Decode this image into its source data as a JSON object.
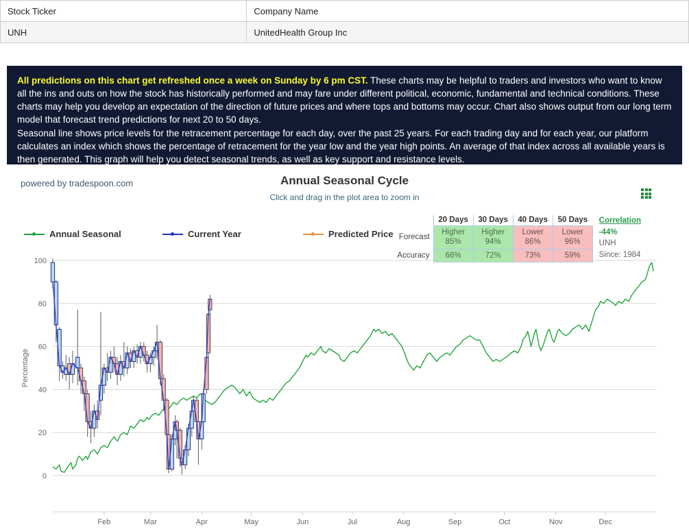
{
  "stock_table": {
    "headers": [
      "Stock Ticker",
      "Company Name"
    ],
    "row": [
      "UNH",
      "UnitedHealth Group Inc"
    ]
  },
  "info_box": {
    "highlight": "All predictions on this chart get refreshed once a week on Sunday by 6 pm CST.",
    "paragraph1_rest": " These charts may be helpful to traders and investors who want to know all the ins and outs on how the stock has historically performed and may fare under different political, economic, fundamental and technical conditions. These charts may help you develop an expectation of the direction of future prices and where tops and bottoms may occur. Chart also shows output from our long term model that forecast trend predictions for next 20 to 50 days.",
    "paragraph2": "Seasonal line shows price levels for the retracement percentage for each day, over the past 25 years. For each trading day and for each year, our platform calculates an index which shows the percentage of retracement for the year low and the year high points. An average of that index across all available years is then generated. This graph will help you detect seasonal trends, as well as key support and resistance levels."
  },
  "chart_header": {
    "powered_by": "powered by tradespoon.com",
    "title": "Annual Seasonal Cycle",
    "subtitle": "Click and drag in the plot area to zoom in"
  },
  "legend": [
    {
      "label": "Annual Seasonal",
      "color": "#21a63c"
    },
    {
      "label": "Current Year",
      "color": "#2431c8"
    },
    {
      "label": "Predicted Price",
      "color": "#ef8d3c"
    }
  ],
  "forecast_table": {
    "columns": [
      "20 Days",
      "30 Days",
      "40 Days",
      "50 Days"
    ],
    "forecast_label": "Forecast",
    "accuracy_label": "Accuracy",
    "forecast": [
      {
        "direction": "Higher",
        "pct": "85%",
        "tone": "up"
      },
      {
        "direction": "Higher",
        "pct": "94%",
        "tone": "up"
      },
      {
        "direction": "Lower",
        "pct": "86%",
        "tone": "down"
      },
      {
        "direction": "Lower",
        "pct": "96%",
        "tone": "down"
      }
    ],
    "accuracy": [
      {
        "pct": "66%",
        "tone": "up"
      },
      {
        "pct": "72%",
        "tone": "up"
      },
      {
        "pct": "73%",
        "tone": "down"
      },
      {
        "pct": "59%",
        "tone": "down"
      }
    ]
  },
  "correlation": {
    "label": "Correlation",
    "value": "-44%",
    "symbol": "UNH",
    "since": "Since: 1984"
  },
  "chart_data": {
    "type": "line+candlestick",
    "title": "Annual Seasonal Cycle",
    "ylabel": "Percentage",
    "ylim": [
      0,
      100
    ],
    "y_ticks": [
      0,
      20,
      40,
      60,
      80,
      100
    ],
    "x_months": [
      {
        "label": "Feb",
        "day": 31
      },
      {
        "label": "Mar",
        "day": 59
      },
      {
        "label": "Apr",
        "day": 90
      },
      {
        "label": "May",
        "day": 120
      },
      {
        "label": "Jun",
        "day": 151
      },
      {
        "label": "Jul",
        "day": 181
      },
      {
        "label": "Aug",
        "day": 212
      },
      {
        "label": "Sep",
        "day": 243
      },
      {
        "label": "Oct",
        "day": 273
      },
      {
        "label": "Nov",
        "day": 304
      },
      {
        "label": "Dec",
        "day": 334
      }
    ],
    "grid": true,
    "legend_position": "top-left",
    "seasonal_color": "#21a63c",
    "current_color": "#2431c8",
    "candle_up_fill": "#bcd9f2",
    "candle_up_stroke": "#1c2e72",
    "candle_down_fill": "#f4b3af",
    "candle_down_stroke": "#46464e",
    "wick_color": "#55585c",
    "seasonal": [
      [
        0,
        4
      ],
      [
        2,
        3
      ],
      [
        4,
        5
      ],
      [
        5,
        2
      ],
      [
        7,
        1.5
      ],
      [
        9,
        4
      ],
      [
        11,
        6
      ],
      [
        12,
        3
      ],
      [
        14,
        5
      ],
      [
        15,
        8
      ],
      [
        16,
        9
      ],
      [
        18,
        7
      ],
      [
        20,
        9
      ],
      [
        21,
        7.5
      ],
      [
        23,
        11
      ],
      [
        25,
        12
      ],
      [
        27,
        10
      ],
      [
        29,
        13
      ],
      [
        31,
        14
      ],
      [
        33,
        13
      ],
      [
        35,
        16
      ],
      [
        37,
        18
      ],
      [
        39,
        16
      ],
      [
        41,
        19
      ],
      [
        43,
        20
      ],
      [
        45,
        19
      ],
      [
        47,
        23
      ],
      [
        49,
        22
      ],
      [
        51,
        24
      ],
      [
        53,
        26
      ],
      [
        55,
        25
      ],
      [
        57,
        27
      ],
      [
        58,
        26
      ],
      [
        60,
        28
      ],
      [
        62,
        29
      ],
      [
        64,
        28
      ],
      [
        66,
        30
      ],
      [
        68,
        32
      ],
      [
        70,
        31
      ],
      [
        73,
        34
      ],
      [
        75,
        33
      ],
      [
        77,
        35
      ],
      [
        79,
        36
      ],
      [
        81,
        35
      ],
      [
        83,
        36
      ],
      [
        85,
        37
      ],
      [
        87,
        36
      ],
      [
        89,
        38
      ],
      [
        91,
        37
      ],
      [
        92,
        35
      ],
      [
        94,
        34
      ],
      [
        96,
        33
      ],
      [
        98,
        34
      ],
      [
        100,
        36
      ],
      [
        102,
        38
      ],
      [
        104,
        40
      ],
      [
        106,
        41
      ],
      [
        108,
        42
      ],
      [
        110,
        41
      ],
      [
        111,
        40
      ],
      [
        113,
        38
      ],
      [
        115,
        40
      ],
      [
        117,
        37
      ],
      [
        119,
        39
      ],
      [
        121,
        36
      ],
      [
        123,
        35
      ],
      [
        125,
        34
      ],
      [
        127,
        35
      ],
      [
        129,
        34
      ],
      [
        131,
        36
      ],
      [
        133,
        35
      ],
      [
        135,
        37
      ],
      [
        137,
        39
      ],
      [
        139,
        41
      ],
      [
        141,
        43
      ],
      [
        143,
        44
      ],
      [
        145,
        46
      ],
      [
        147,
        48
      ],
      [
        149,
        50
      ],
      [
        151,
        53
      ],
      [
        153,
        56
      ],
      [
        154,
        55
      ],
      [
        156,
        57
      ],
      [
        158,
        56
      ],
      [
        160,
        58
      ],
      [
        162,
        60
      ],
      [
        163,
        58
      ],
      [
        165,
        57
      ],
      [
        167,
        59
      ],
      [
        169,
        58
      ],
      [
        171,
        57
      ],
      [
        173,
        56
      ],
      [
        174,
        54
      ],
      [
        176,
        53
      ],
      [
        178,
        55
      ],
      [
        180,
        57
      ],
      [
        182,
        58
      ],
      [
        184,
        57
      ],
      [
        186,
        59
      ],
      [
        188,
        61
      ],
      [
        190,
        63
      ],
      [
        192,
        65
      ],
      [
        194,
        68
      ],
      [
        195,
        67
      ],
      [
        197,
        68
      ],
      [
        199,
        66
      ],
      [
        201,
        67
      ],
      [
        203,
        65
      ],
      [
        205,
        66
      ],
      [
        207,
        64
      ],
      [
        209,
        62
      ],
      [
        211,
        60
      ],
      [
        213,
        56
      ],
      [
        215,
        52
      ],
      [
        217,
        50
      ],
      [
        218,
        49
      ],
      [
        220,
        51
      ],
      [
        222,
        50
      ],
      [
        224,
        53
      ],
      [
        226,
        56
      ],
      [
        228,
        57
      ],
      [
        230,
        55
      ],
      [
        232,
        53
      ],
      [
        234,
        55
      ],
      [
        236,
        56
      ],
      [
        238,
        57
      ],
      [
        240,
        56
      ],
      [
        242,
        58
      ],
      [
        244,
        60
      ],
      [
        246,
        61
      ],
      [
        248,
        63
      ],
      [
        250,
        64
      ],
      [
        252,
        65
      ],
      [
        254,
        64
      ],
      [
        256,
        63
      ],
      [
        258,
        63
      ],
      [
        260,
        60
      ],
      [
        262,
        57
      ],
      [
        264,
        55
      ],
      [
        266,
        53
      ],
      [
        268,
        54
      ],
      [
        270,
        53
      ],
      [
        272,
        54
      ],
      [
        274,
        55
      ],
      [
        277,
        57
      ],
      [
        279,
        58
      ],
      [
        281,
        57
      ],
      [
        283,
        60
      ],
      [
        284,
        63
      ],
      [
        286,
        65
      ],
      [
        287,
        67
      ],
      [
        288,
        64
      ],
      [
        289,
        60
      ],
      [
        291,
        66
      ],
      [
        292,
        68
      ],
      [
        294,
        60
      ],
      [
        295,
        58
      ],
      [
        297,
        62
      ],
      [
        299,
        67
      ],
      [
        300,
        68
      ],
      [
        302,
        63
      ],
      [
        303,
        62
      ],
      [
        305,
        67
      ],
      [
        306,
        68
      ],
      [
        308,
        66
      ],
      [
        310,
        65
      ],
      [
        312,
        66
      ],
      [
        314,
        68
      ],
      [
        316,
        69
      ],
      [
        318,
        70
      ],
      [
        320,
        68
      ],
      [
        322,
        70
      ],
      [
        324,
        67
      ],
      [
        326,
        72
      ],
      [
        328,
        77
      ],
      [
        330,
        79
      ],
      [
        331,
        81
      ],
      [
        333,
        80
      ],
      [
        335,
        82
      ],
      [
        337,
        81
      ],
      [
        339,
        80
      ],
      [
        340,
        79
      ],
      [
        342,
        81
      ],
      [
        344,
        80
      ],
      [
        346,
        82
      ],
      [
        348,
        81
      ],
      [
        350,
        84
      ],
      [
        352,
        86
      ],
      [
        354,
        88
      ],
      [
        356,
        90
      ],
      [
        358,
        91
      ],
      [
        359,
        93
      ],
      [
        360,
        96
      ],
      [
        361,
        98
      ],
      [
        362,
        99
      ],
      [
        363,
        95
      ]
    ],
    "candles": [
      [
        0,
        99,
        101,
        87,
        90,
        "u"
      ],
      [
        2,
        90,
        91,
        62,
        70,
        "u"
      ],
      [
        4,
        68,
        69,
        44,
        51,
        "u"
      ],
      [
        6,
        51,
        53,
        45,
        48,
        "u"
      ],
      [
        8,
        47,
        56,
        44,
        50,
        "u"
      ],
      [
        10,
        52,
        55,
        40,
        47,
        "d"
      ],
      [
        12,
        47,
        58,
        43,
        52,
        "u"
      ],
      [
        15,
        55,
        77,
        42,
        50,
        "u"
      ],
      [
        17,
        50,
        52,
        38,
        44,
        "d"
      ],
      [
        19,
        44,
        46,
        30,
        38,
        "d"
      ],
      [
        21,
        38,
        40,
        18,
        25,
        "d"
      ],
      [
        23,
        25,
        30,
        15,
        22,
        "d"
      ],
      [
        25,
        22,
        33,
        18,
        30,
        "u"
      ],
      [
        27,
        30,
        35,
        22,
        26,
        "d"
      ],
      [
        29,
        35,
        76,
        28,
        42,
        "u"
      ],
      [
        31,
        42,
        52,
        38,
        50,
        "u"
      ],
      [
        33,
        50,
        57,
        44,
        48,
        "d"
      ],
      [
        35,
        48,
        58,
        45,
        55,
        "u"
      ],
      [
        37,
        55,
        60,
        48,
        52,
        "d"
      ],
      [
        39,
        52,
        55,
        42,
        47,
        "d"
      ],
      [
        41,
        47,
        56,
        44,
        53,
        "u"
      ],
      [
        43,
        53,
        62,
        46,
        50,
        "d"
      ],
      [
        45,
        50,
        60,
        47,
        57,
        "u"
      ],
      [
        47,
        57,
        59,
        50,
        53,
        "d"
      ],
      [
        49,
        53,
        60,
        50,
        58,
        "u"
      ],
      [
        51,
        58,
        61,
        52,
        55,
        "d"
      ],
      [
        53,
        55,
        62,
        52,
        60,
        "u"
      ],
      [
        55,
        60,
        62,
        53,
        56,
        "d"
      ],
      [
        57,
        56,
        58,
        48,
        52,
        "d"
      ],
      [
        59,
        52,
        57,
        48,
        55,
        "u"
      ],
      [
        61,
        55,
        60,
        51,
        58,
        "u"
      ],
      [
        63,
        58,
        70,
        54,
        62,
        "u"
      ],
      [
        65,
        62,
        63,
        42,
        45,
        "d"
      ],
      [
        67,
        45,
        47,
        30,
        35,
        "d"
      ],
      [
        69,
        35,
        36,
        12,
        19,
        "d"
      ],
      [
        70,
        19,
        20,
        1,
        3,
        "d"
      ],
      [
        72,
        3,
        19,
        2,
        17,
        "u"
      ],
      [
        74,
        17,
        28,
        14,
        25,
        "u"
      ],
      [
        75,
        25,
        26,
        8,
        21,
        "d"
      ],
      [
        77,
        21,
        22,
        4,
        8,
        "d"
      ],
      [
        78,
        8,
        10,
        0.5,
        5,
        "d"
      ],
      [
        80,
        5,
        14,
        3,
        12,
        "u"
      ],
      [
        82,
        12,
        24,
        9,
        22,
        "u"
      ],
      [
        84,
        22,
        32,
        18,
        30,
        "u"
      ],
      [
        85,
        30,
        37,
        27,
        35,
        "u"
      ],
      [
        87,
        35,
        36,
        20,
        25,
        "d"
      ],
      [
        88,
        25,
        26,
        5,
        17,
        "d"
      ],
      [
        90,
        17,
        27,
        12,
        25,
        "u"
      ],
      [
        91,
        25,
        40,
        22,
        38,
        "u"
      ],
      [
        93,
        40,
        56,
        38,
        55,
        "d"
      ],
      [
        94,
        57,
        76,
        54,
        75,
        "d"
      ],
      [
        95,
        77,
        84,
        74,
        82,
        "d"
      ]
    ],
    "predicted": []
  }
}
